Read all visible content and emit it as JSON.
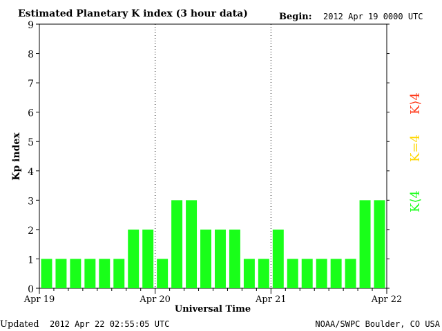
{
  "header": {
    "title": "Estimated Planetary K index (3 hour data)",
    "begin_label": "Begin:",
    "begin_value": "2012 Apr 19 0000 UTC"
  },
  "footer": {
    "updated_label": "Updated",
    "updated_value": "2012 Apr 22 02:55:05 UTC",
    "source": "NOAA/SWPC Boulder, CO USA"
  },
  "legend": {
    "greater": "K⟩4",
    "equal": "K=4",
    "less": "K⟨4"
  },
  "colors": {
    "bar": "#19ff19",
    "bar_edge": "#000000",
    "legend_greater": "#ff3c1e",
    "legend_equal": "#ffd700",
    "legend_less": "#19ff19",
    "axis": "#000000"
  },
  "chart_data": {
    "type": "bar",
    "title": "Estimated Planetary K index (3 hour data)",
    "xlabel": "Universal Time",
    "ylabel": "Kp index",
    "ylim": [
      0,
      9
    ],
    "yticks": [
      0,
      1,
      2,
      3,
      4,
      5,
      6,
      7,
      8,
      9
    ],
    "x_tick_labels": [
      "Apr 19",
      "Apr 20",
      "Apr 21",
      "Apr 22"
    ],
    "grid": "vertical dotted at day boundaries",
    "categories": [
      "Apr 19 00",
      "Apr 19 03",
      "Apr 19 06",
      "Apr 19 09",
      "Apr 19 12",
      "Apr 19 15",
      "Apr 19 18",
      "Apr 19 21",
      "Apr 20 00",
      "Apr 20 03",
      "Apr 20 06",
      "Apr 20 09",
      "Apr 20 12",
      "Apr 20 15",
      "Apr 20 18",
      "Apr 20 21",
      "Apr 21 00",
      "Apr 21 03",
      "Apr 21 06",
      "Apr 21 09",
      "Apr 21 12",
      "Apr 21 15",
      "Apr 21 18",
      "Apr 21 21"
    ],
    "values": [
      1,
      1,
      1,
      1,
      1,
      1,
      2,
      2,
      1,
      3,
      3,
      2,
      2,
      2,
      1,
      1,
      2,
      1,
      1,
      1,
      1,
      1,
      3,
      3
    ]
  }
}
